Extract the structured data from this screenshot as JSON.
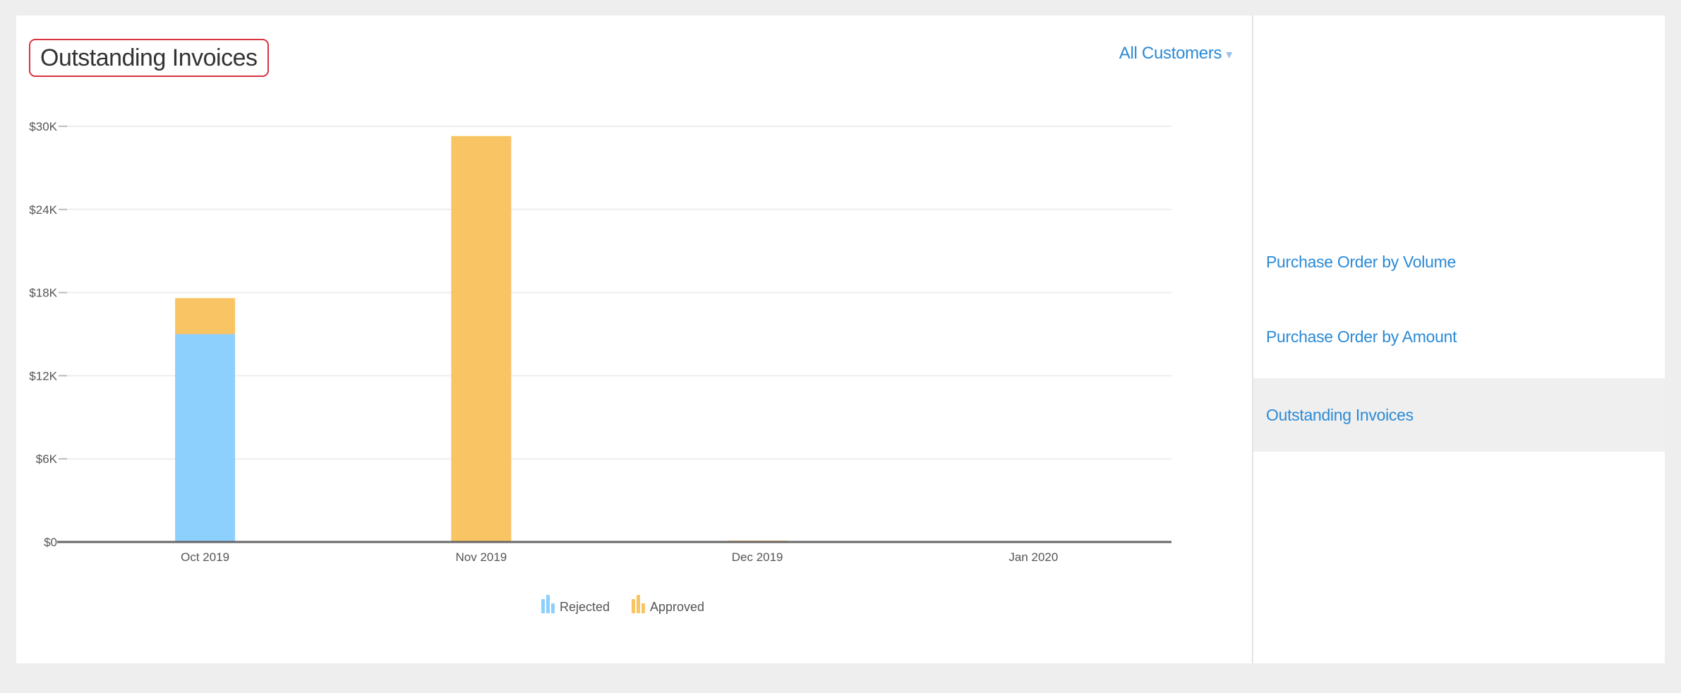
{
  "header": {
    "title": "Outstanding Invoices",
    "filter_label": "All Customers",
    "filter_caret": "▾"
  },
  "sidebar": {
    "items": [
      {
        "label": "Purchase Order by Volume",
        "active": false
      },
      {
        "label": "Purchase Order by Amount",
        "active": false
      },
      {
        "label": "Outstanding Invoices",
        "active": true
      }
    ]
  },
  "colors": {
    "rejected": "#8ed0fd",
    "approved": "#f9c463",
    "grid": "#eeeeee",
    "axis": "#666666",
    "tick_text": "#555555",
    "link": "#2b8ad6"
  },
  "chart_data": {
    "type": "bar",
    "stacked": true,
    "categories": [
      "Oct 2019",
      "Nov 2019",
      "Dec 2019",
      "Jan 2020"
    ],
    "series": [
      {
        "name": "Rejected",
        "color": "#8ed0fd",
        "values": [
          15000,
          0,
          0,
          0
        ]
      },
      {
        "name": "Approved",
        "color": "#f9c463",
        "values": [
          2600,
          29300,
          100,
          0
        ]
      }
    ],
    "y_ticks": [
      0,
      6000,
      12000,
      18000,
      24000,
      30000
    ],
    "y_tick_labels": [
      "$0",
      "$6K",
      "$12K",
      "$18K",
      "$24K",
      "$30K"
    ],
    "ylim": [
      0,
      30000
    ],
    "grid": true,
    "legend_position": "bottom-center"
  }
}
